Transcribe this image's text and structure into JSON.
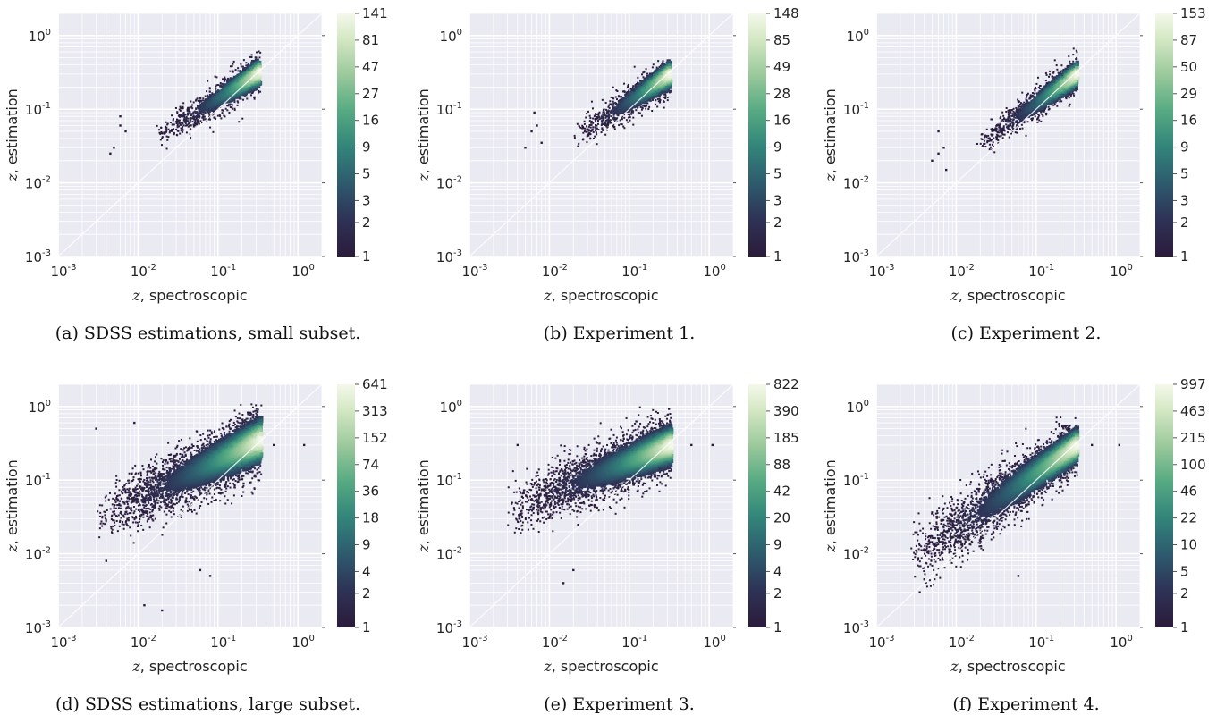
{
  "chart_data": [
    {
      "type": "heatmap",
      "caption": "(a) SDSS estimations, small subset.",
      "xlabel_var": "z",
      "xlabel": ", spectroscopic",
      "ylabel_var": "z",
      "ylabel": ", estimation",
      "xscale": "log",
      "yscale": "log",
      "xlim": [
        0.001,
        2.0
      ],
      "ylim": [
        0.001,
        2.0
      ],
      "x_ticks": [
        "-3",
        "-2",
        "-1",
        "0"
      ],
      "y_ticks": [
        "-3",
        "-2",
        "-1",
        "0"
      ],
      "grid": true,
      "colorbar_ticks": [
        "141",
        "81",
        "47",
        "27",
        "16",
        "9",
        "5",
        "3",
        "2",
        "1"
      ],
      "cloud": {
        "x_min": 0.016,
        "x_max": 0.34,
        "y_at_min": 0.04,
        "y_at_max": 0.32,
        "spread_lo": 0.12,
        "spread_hi": 0.18,
        "count": 1100,
        "sparse": [
          [
            0.005,
            0.03
          ],
          [
            0.006,
            0.08
          ],
          [
            0.007,
            0.05
          ],
          [
            0.006,
            0.06
          ],
          [
            0.0045,
            0.025
          ]
        ]
      }
    },
    {
      "type": "heatmap",
      "caption": "(b) Experiment 1.",
      "xlabel_var": "z",
      "xlabel": ", spectroscopic",
      "ylabel_var": "z",
      "ylabel": ", estimation",
      "xscale": "log",
      "yscale": "log",
      "xlim": [
        0.001,
        2.0
      ],
      "ylim": [
        0.001,
        2.0
      ],
      "x_ticks": [
        "-3",
        "-2",
        "-1",
        "0"
      ],
      "y_ticks": [
        "-3",
        "-2",
        "-1",
        "0"
      ],
      "grid": true,
      "colorbar_ticks": [
        "148",
        "85",
        "49",
        "28",
        "16",
        "9",
        "5",
        "3",
        "2",
        "1"
      ],
      "cloud": {
        "x_min": 0.02,
        "x_max": 0.33,
        "y_at_min": 0.04,
        "y_at_max": 0.3,
        "spread_lo": 0.13,
        "spread_hi": 0.18,
        "count": 1100,
        "sparse": [
          [
            0.005,
            0.03
          ],
          [
            0.0065,
            0.09
          ],
          [
            0.007,
            0.06
          ],
          [
            0.008,
            0.035
          ],
          [
            0.006,
            0.05
          ]
        ]
      }
    },
    {
      "type": "heatmap",
      "caption": "(c) Experiment 2.",
      "xlabel_var": "z",
      "xlabel": ", spectroscopic",
      "ylabel_var": "z",
      "ylabel": ", estimation",
      "xscale": "log",
      "yscale": "log",
      "xlim": [
        0.001,
        2.0
      ],
      "ylim": [
        0.001,
        2.0
      ],
      "x_ticks": [
        "-3",
        "-2",
        "-1",
        "0"
      ],
      "y_ticks": [
        "-3",
        "-2",
        "-1",
        "0"
      ],
      "grid": true,
      "colorbar_ticks": [
        "153",
        "87",
        "50",
        "29",
        "16",
        "9",
        "5",
        "3",
        "2",
        "1"
      ],
      "cloud": {
        "x_min": 0.017,
        "x_max": 0.33,
        "y_at_min": 0.03,
        "y_at_max": 0.3,
        "spread_lo": 0.13,
        "spread_hi": 0.17,
        "count": 1100,
        "sparse": [
          [
            0.005,
            0.02
          ],
          [
            0.006,
            0.05
          ],
          [
            0.007,
            0.03
          ],
          [
            0.0075,
            0.015
          ],
          [
            0.006,
            0.025
          ]
        ]
      }
    },
    {
      "type": "heatmap",
      "caption": "(d) SDSS estimations, large subset.",
      "xlabel_var": "z",
      "xlabel": ", spectroscopic",
      "ylabel_var": "z",
      "ylabel": ", estimation",
      "xscale": "log",
      "yscale": "log",
      "xlim": [
        0.001,
        2.0
      ],
      "ylim": [
        0.001,
        2.0
      ],
      "x_ticks": [
        "-3",
        "-2",
        "-1",
        "0"
      ],
      "y_ticks": [
        "-3",
        "-2",
        "-1",
        "0"
      ],
      "grid": true,
      "colorbar_ticks": [
        "641",
        "313",
        "152",
        "74",
        "36",
        "18",
        "9",
        "4",
        "2",
        "1"
      ],
      "cloud": {
        "x_min": 0.003,
        "x_max": 0.35,
        "y_at_min": 0.03,
        "y_at_max": 0.35,
        "spread_lo": 0.25,
        "spread_hi": 0.3,
        "count": 3200,
        "sparse": [
          [
            0.02,
            0.0017
          ],
          [
            0.012,
            0.002
          ],
          [
            0.06,
            0.006
          ],
          [
            0.08,
            0.005
          ],
          [
            0.004,
            0.008
          ],
          [
            0.5,
            0.3
          ],
          [
            1.2,
            0.3
          ],
          [
            0.003,
            0.5
          ],
          [
            0.009,
            0.6
          ]
        ]
      }
    },
    {
      "type": "heatmap",
      "caption": "(e) Experiment 3.",
      "xlabel_var": "z",
      "xlabel": ", spectroscopic",
      "ylabel_var": "z",
      "ylabel": ", estimation",
      "xscale": "log",
      "yscale": "log",
      "xlim": [
        0.001,
        2.0
      ],
      "ylim": [
        0.001,
        2.0
      ],
      "x_ticks": [
        "-3",
        "-2",
        "-1",
        "0"
      ],
      "y_ticks": [
        "-3",
        "-2",
        "-1",
        "0"
      ],
      "grid": true,
      "colorbar_ticks": [
        "822",
        "390",
        "185",
        "88",
        "42",
        "20",
        "9",
        "4",
        "2",
        "1"
      ],
      "cloud": {
        "x_min": 0.003,
        "x_max": 0.34,
        "y_at_min": 0.04,
        "y_at_max": 0.3,
        "spread_lo": 0.25,
        "spread_hi": 0.26,
        "count": 3200,
        "sparse": [
          [
            0.015,
            0.004
          ],
          [
            0.02,
            0.006
          ],
          [
            0.6,
            0.3
          ],
          [
            1.1,
            0.3
          ],
          [
            0.004,
            0.3
          ]
        ]
      }
    },
    {
      "type": "heatmap",
      "caption": "(f) Experiment 4.",
      "xlabel_var": "z",
      "xlabel": ", spectroscopic",
      "ylabel_var": "z",
      "ylabel": ", estimation",
      "xscale": "log",
      "yscale": "log",
      "xlim": [
        0.001,
        2.0
      ],
      "ylim": [
        0.001,
        2.0
      ],
      "x_ticks": [
        "-3",
        "-2",
        "-1",
        "0"
      ],
      "y_ticks": [
        "-3",
        "-2",
        "-1",
        "0"
      ],
      "grid": true,
      "colorbar_ticks": [
        "997",
        "463",
        "215",
        "100",
        "46",
        "22",
        "10",
        "5",
        "2",
        "1"
      ],
      "cloud": {
        "x_min": 0.0025,
        "x_max": 0.33,
        "y_at_min": 0.008,
        "y_at_max": 0.3,
        "spread_lo": 0.35,
        "spread_hi": 0.22,
        "count": 3200,
        "sparse": [
          [
            0.0035,
            0.003
          ],
          [
            0.004,
            0.0045
          ],
          [
            0.5,
            0.3
          ],
          [
            1.1,
            0.3
          ],
          [
            0.06,
            0.005
          ]
        ]
      }
    }
  ]
}
